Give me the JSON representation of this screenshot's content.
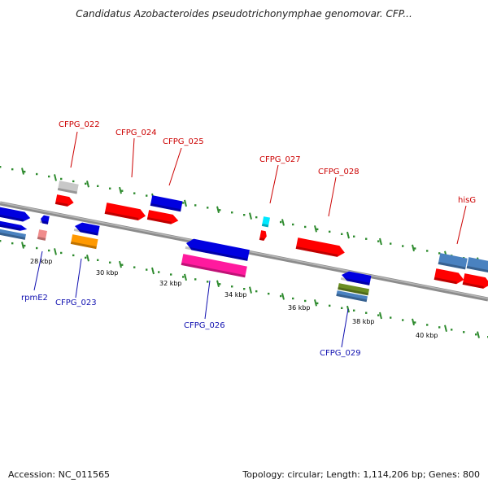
{
  "title": "Candidatus Azobacteroides pseudotrichonymphae genomovar. CFP...",
  "footer": {
    "accession": "Accession: NC_011565",
    "topology": "Topology: circular; Length: 1,114,206 bp; Genes: 800"
  },
  "colors": {
    "backbone": "#8c8c8c",
    "tick": "#2e8b2e",
    "top_label": "#cc0000",
    "bottom_label": "#1010b0",
    "red": "#ff0000",
    "blue": "#0000e0",
    "gray": "#c8c8c8",
    "salmon": "#f08c8c",
    "orange": "#ff9900",
    "cyan": "#00e8ff",
    "magenta": "#ff1a9e",
    "olive": "#6b8e23",
    "steelblue": "#4a82c0"
  },
  "scale_labels": [
    "28 kbp",
    "30 kbp",
    "32 kbp",
    "34 kbp",
    "36 kbp",
    "38 kbp",
    "40 kbp"
  ],
  "top_labels": [
    "CFPG_022",
    "CFPG_024",
    "CFPG_025",
    "CFPG_027",
    "CFPG_028",
    "hisG"
  ],
  "bottom_labels": [
    "rpmE2",
    "CFPG_023",
    "CFPG_026",
    "CFPG_029"
  ]
}
